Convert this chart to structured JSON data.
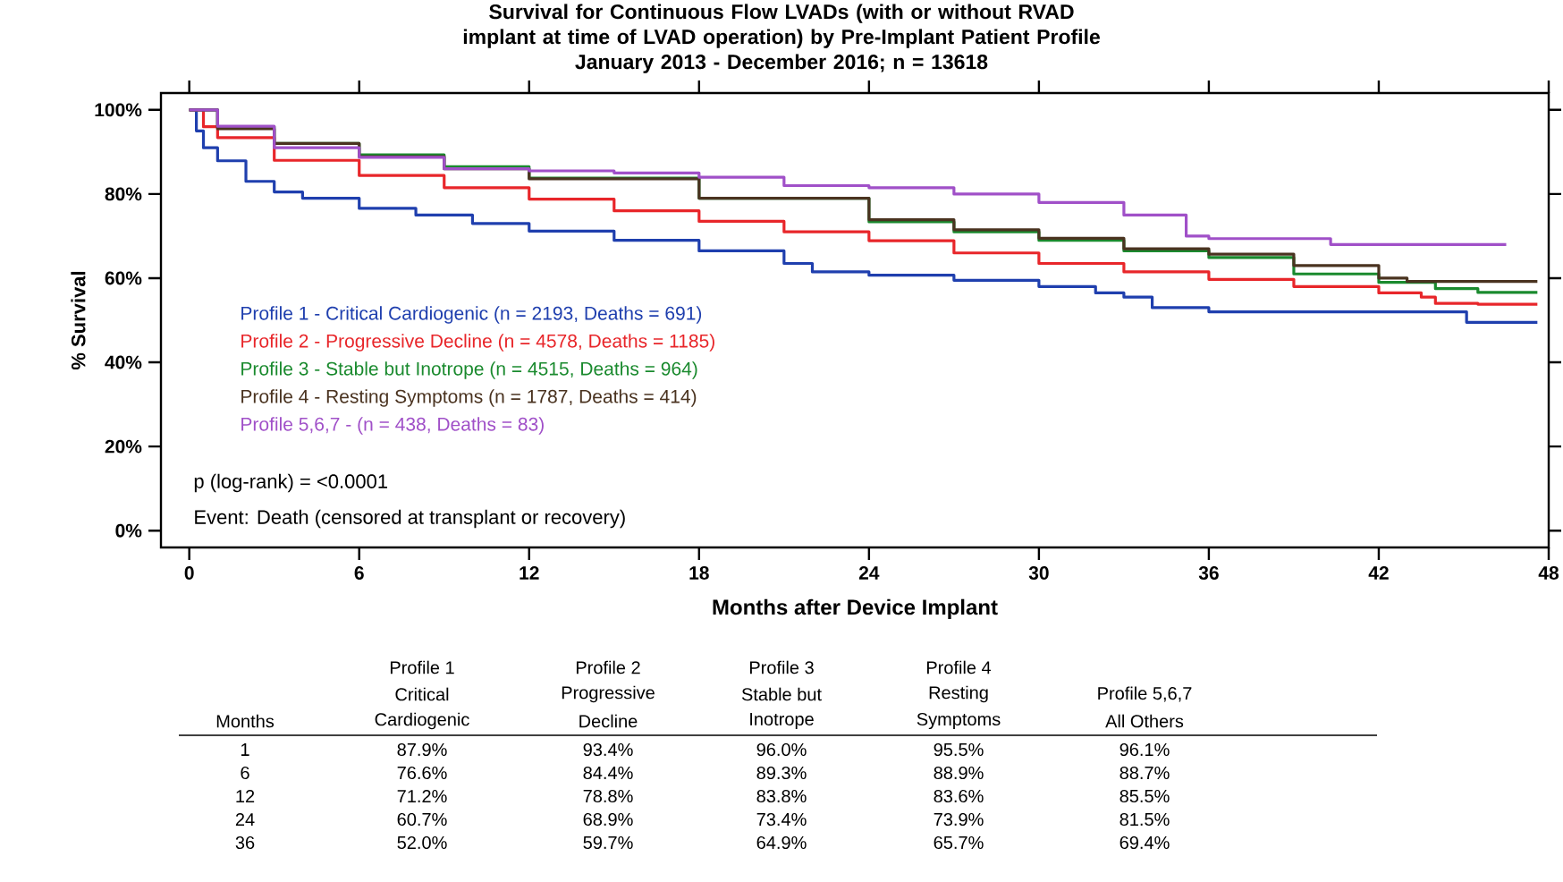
{
  "chart_data": {
    "type": "step",
    "title": "Survival for Continuous Flow LVADs (with or without RVAD implant at time of LVAD operation) by Pre-Implant Patient Profile",
    "subtitle": "January 2013 - December 2016; n = 13618",
    "xlabel": "Months after Device Implant",
    "ylabel": "% Survival",
    "xlim": [
      -1,
      48
    ],
    "ylim": [
      -4,
      104
    ],
    "xticks": [
      0,
      6,
      12,
      18,
      24,
      30,
      36,
      42,
      48
    ],
    "yticks": [
      {
        "value": 0,
        "label": "0%"
      },
      {
        "value": 20,
        "label": "20%"
      },
      {
        "value": 40,
        "label": "40%"
      },
      {
        "value": 60,
        "label": "60%"
      },
      {
        "value": 80,
        "label": "80%"
      },
      {
        "value": 100,
        "label": "100%"
      }
    ],
    "series": [
      {
        "name": "Profile 1 - Critical Cardiogenic (n = 2193, Deaths = 691)",
        "color": "#1f3fae",
        "x": [
          0,
          0.25,
          0.5,
          1,
          2,
          3,
          4,
          6,
          8,
          10,
          12,
          15,
          18,
          21,
          22,
          24,
          27,
          30,
          32,
          33,
          34,
          36,
          45.1,
          47.6
        ],
        "values": [
          100,
          95,
          91,
          87.9,
          83,
          80.5,
          79,
          76.6,
          75,
          73,
          71.2,
          69,
          66.5,
          63.5,
          61.5,
          60.7,
          59.5,
          58,
          56.5,
          55.5,
          53,
          52.0,
          49.5,
          49.5
        ]
      },
      {
        "name": "Profile 2 - Progressive Decline (n = 4578, Deaths = 1185)",
        "color": "#e8262a",
        "x": [
          0,
          0.5,
          1,
          3,
          6,
          9,
          12,
          15,
          18,
          21,
          24,
          27,
          30,
          33,
          36,
          39,
          42,
          43.5,
          44,
          45.5,
          47.6
        ],
        "values": [
          100,
          96,
          93.4,
          88,
          84.4,
          81.5,
          78.8,
          76,
          73.5,
          71,
          68.9,
          66,
          63.5,
          61.5,
          59.7,
          58,
          56.5,
          55.5,
          54,
          53.8,
          53.8
        ]
      },
      {
        "name": "Profile 3 - Stable but Inotrope (n = 4515, Deaths = 964)",
        "color": "#1a8a2e",
        "x": [
          0,
          1,
          3,
          6,
          9,
          12,
          18,
          24,
          27,
          30,
          33,
          36,
          39,
          42,
          44,
          45.5,
          47.6
        ],
        "values": [
          100,
          96.0,
          92,
          89.3,
          86.5,
          83.8,
          79,
          73.4,
          71,
          69,
          66.5,
          64.9,
          61,
          59,
          57.5,
          56.6,
          56.6
        ]
      },
      {
        "name": "Profile 4 - Resting Symptoms (n = 1787, Deaths = 414)",
        "color": "#4a3320",
        "x": [
          0,
          1,
          3,
          6,
          9,
          12,
          18,
          24,
          27,
          30,
          33,
          36,
          39,
          42,
          43,
          47.6
        ],
        "values": [
          100,
          95.5,
          92,
          88.9,
          86,
          83.6,
          79,
          73.9,
          71.5,
          69.5,
          67,
          65.7,
          63,
          60,
          59.2,
          59.2
        ]
      },
      {
        "name": "Profile 5,6,7 - (n = 438, Deaths = 83)",
        "color": "#a050c8",
        "x": [
          0,
          1,
          3,
          6,
          9,
          12,
          15,
          18,
          21,
          24,
          27,
          30,
          33,
          35.2,
          36,
          40.3,
          46.5
        ],
        "values": [
          100,
          96.1,
          91,
          88.7,
          86,
          85.5,
          85,
          84,
          82,
          81.5,
          80,
          78,
          75,
          70,
          69.4,
          68,
          68
        ]
      }
    ],
    "annotations": [
      "p (log-rank) = <0.0001",
      "Event: Death (censored at transplant or recovery)",
      "Months",
      "1",
      "6",
      "12",
      "24",
      "36",
      "Profile 1",
      "Critical",
      "Cardiogenic",
      "Profile 2",
      "Progressive",
      "Decline",
      "Profile 3",
      "Stable but",
      "Inotrope",
      "Profile 4",
      "Resting",
      "Symptoms",
      "Profile 5,6,7",
      "All Others",
      "87.9%",
      "76.6%",
      "71.2%",
      "60.7%",
      "52.0%",
      "93.4%",
      "84.4%",
      "78.8%",
      "68.9%",
      "59.7%",
      "96.0%",
      "89.3%",
      "83.8%",
      "73.4%",
      "64.9%",
      "95.5%",
      "88.9%",
      "83.6%",
      "73.9%",
      "65.7%",
      "96.1%",
      "88.7%",
      "85.5%",
      "81.5%",
      "69.4%"
    ]
  }
}
